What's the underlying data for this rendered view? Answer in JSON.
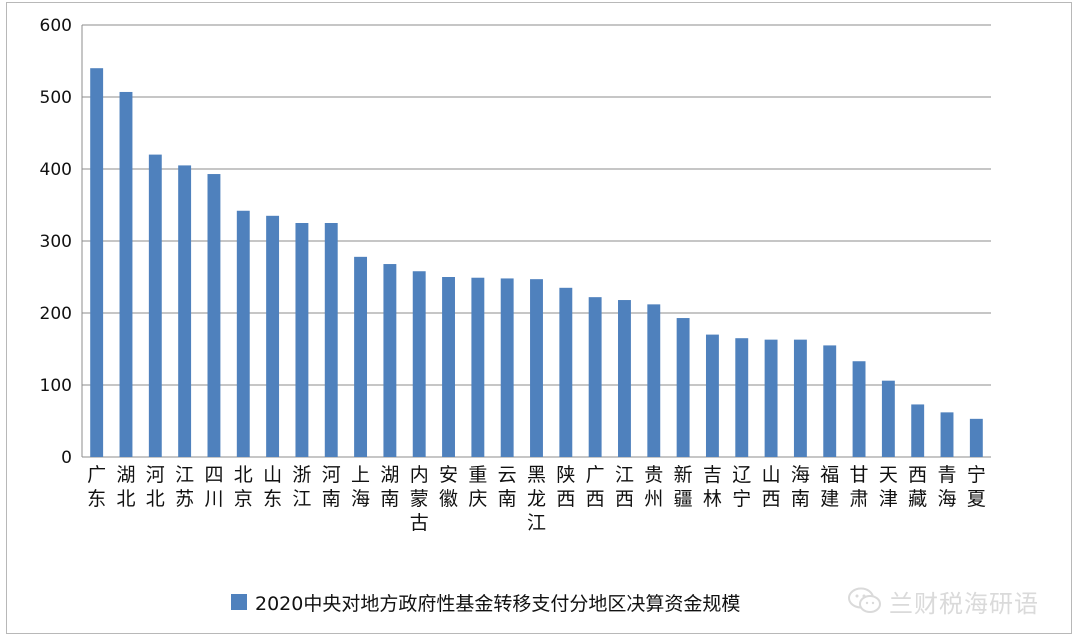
{
  "chart_data": {
    "type": "bar",
    "categories": [
      "广东",
      "湖北",
      "河北",
      "江苏",
      "四川",
      "北京",
      "山东",
      "浙江",
      "河南",
      "上海",
      "湖南",
      "内蒙古",
      "安徽",
      "重庆",
      "云南",
      "黑龙江",
      "陕西",
      "广西",
      "江西",
      "贵州",
      "新疆",
      "吉林",
      "辽宁",
      "山西",
      "海南",
      "福建",
      "甘肃",
      "天津",
      "西藏",
      "青海",
      "宁夏"
    ],
    "series": [
      {
        "name": "2020中央对地方政府性基金转移支付分地区决算资金规模",
        "values": [
          540,
          507,
          420,
          405,
          393,
          342,
          335,
          325,
          325,
          278,
          268,
          258,
          250,
          249,
          248,
          247,
          235,
          222,
          218,
          212,
          193,
          170,
          165,
          163,
          163,
          155,
          133,
          106,
          73,
          62,
          53
        ],
        "color": "#4f81bd"
      }
    ],
    "ylim": [
      0,
      600
    ],
    "yticks": [
      0,
      100,
      200,
      300,
      400,
      500,
      600
    ],
    "grid": true,
    "legend_position": "bottom"
  },
  "watermark": {
    "text": "兰财税海研语",
    "icon": "wechat-icon"
  }
}
